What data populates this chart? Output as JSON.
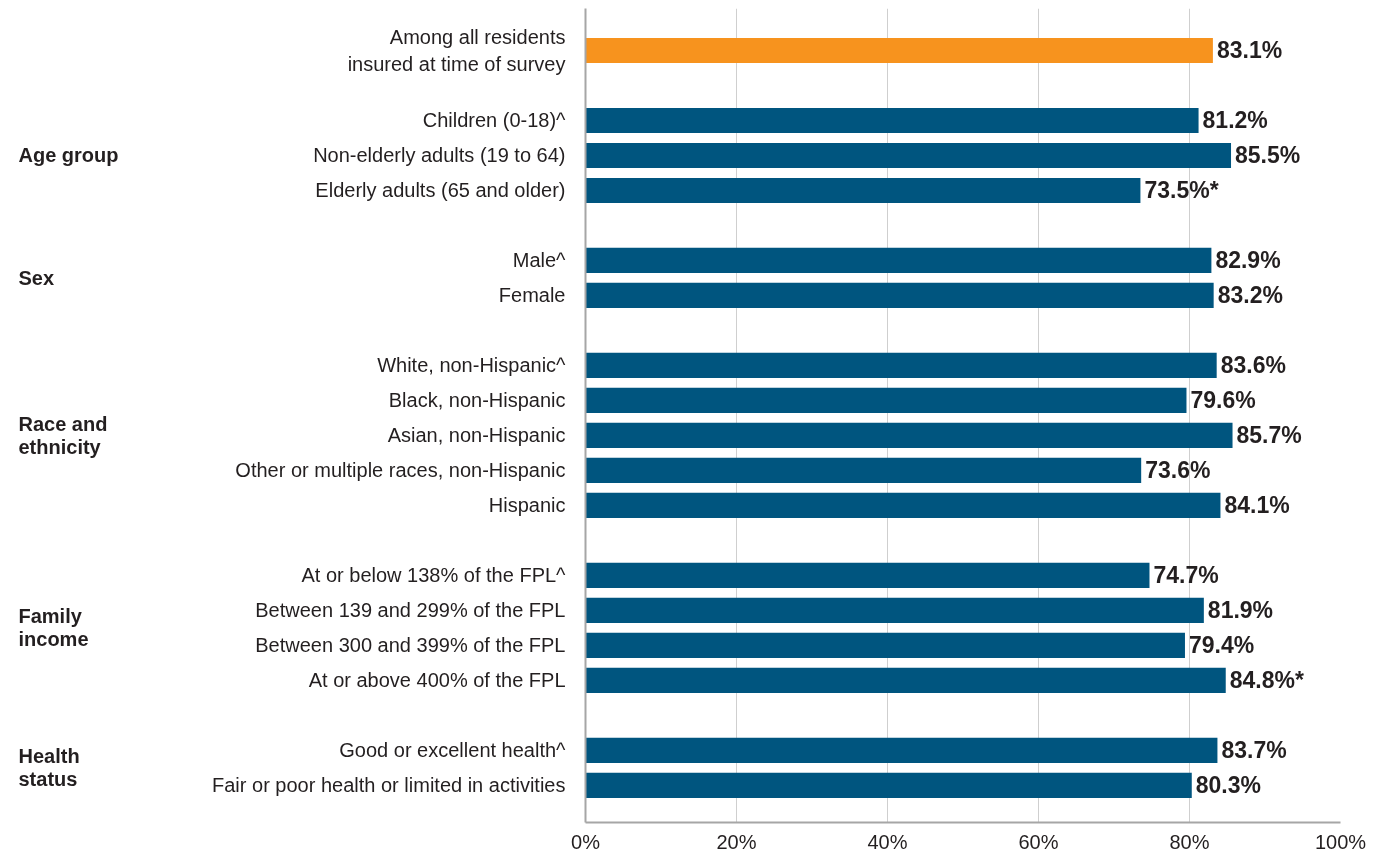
{
  "chart_data": {
    "type": "bar",
    "orientation": "horizontal",
    "categories": [
      "Among all residents\ninsured at time of survey",
      null,
      "Children (0-18)^",
      "Non-elderly adults (19 to 64)",
      "Elderly adults (65 and older)",
      null,
      "Male^",
      "Female",
      null,
      "White, non-Hispanic^",
      "Black, non-Hispanic",
      "Asian, non-Hispanic",
      "Other or multiple races, non-Hispanic",
      "Hispanic",
      null,
      "At or below 138% of the FPL^",
      "Between 139 and 299% of the FPL",
      "Between 300 and 399% of the FPL",
      "At or above 400% of the FPL",
      null,
      "Good or excellent health^",
      "Fair or poor health or limited in activities"
    ],
    "values": [
      83.1,
      null,
      81.2,
      85.5,
      73.5,
      null,
      82.9,
      83.2,
      null,
      83.6,
      79.6,
      85.7,
      73.6,
      84.1,
      null,
      74.7,
      81.9,
      79.4,
      84.8,
      null,
      83.7,
      80.3
    ],
    "colors": [
      "#f7931e",
      null,
      "#00557f",
      "#00557f",
      "#00557f",
      null,
      "#00557f",
      "#00557f",
      null,
      "#00557f",
      "#00557f",
      "#00557f",
      "#00557f",
      "#00557f",
      null,
      "#00557f",
      "#00557f",
      "#00557f",
      "#00557f",
      null,
      "#00557f",
      "#00557f"
    ],
    "value_labels": [
      "83.1%",
      null,
      "81.2%",
      "85.5%",
      "73.5%*",
      null,
      "82.9%",
      "83.2%",
      null,
      "83.6%",
      "79.6%",
      "85.7%",
      "73.6%",
      "84.1%",
      null,
      "74.7%",
      "81.9%",
      "79.4%",
      "84.8%*",
      null,
      "83.7%",
      "80.3%"
    ],
    "xlim": [
      0,
      100
    ],
    "xticks": [
      {
        "value": 0,
        "label": "0%"
      },
      {
        "value": 20,
        "label": "20%"
      },
      {
        "value": 40,
        "label": "40%"
      },
      {
        "value": 60,
        "label": "60%"
      },
      {
        "value": 80,
        "label": "80%"
      },
      {
        "value": 100,
        "label": "100%"
      }
    ],
    "grid": "x",
    "annotations": [
      "Age group",
      "Sex",
      "Race and\nethnicity",
      "Family\nincome",
      "Health\nstatus"
    ]
  }
}
